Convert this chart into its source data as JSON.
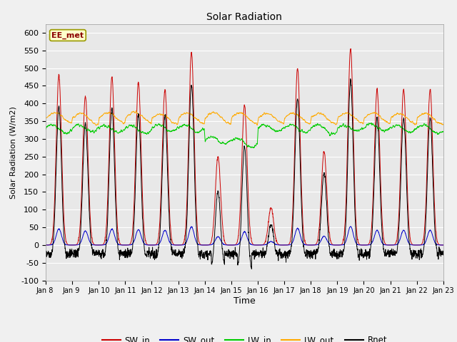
{
  "title": "Solar Radiation",
  "ylabel": "Solar Radiation (W/m2)",
  "xlabel": "Time",
  "station_label": "EE_met",
  "ylim": [
    -100,
    625
  ],
  "yticks": [
    -100,
    -50,
    0,
    50,
    100,
    150,
    200,
    250,
    300,
    350,
    400,
    450,
    500,
    550,
    600
  ],
  "n_days": 15,
  "points_per_day": 144,
  "SW_in_peaks": [
    480,
    420,
    475,
    460,
    440,
    545,
    250,
    395,
    105,
    500,
    265,
    555,
    440,
    440,
    440
  ],
  "colors": {
    "SW_in": "#cc0000",
    "SW_out": "#0000cc",
    "LW_in": "#00cc00",
    "LW_out": "#ffaa00",
    "Rnet": "#000000"
  },
  "bg_color": "#e8e8e8",
  "grid_color": "#ffffff",
  "linewidth": 0.7,
  "fig_facecolor": "#f0f0f0",
  "tick_labels": [
    "Jan 8",
    "Jan 9",
    "Jan 10",
    "Jan 11",
    "Jan 12",
    "Jan 13",
    "Jan 14",
    "Jan 15",
    "Jan 16",
    "Jan 17",
    "Jan 18",
    "Jan 19",
    "Jan 20",
    "Jan 21",
    "Jan 22",
    "Jan 23"
  ],
  "legend_labels": [
    "SW_in",
    "SW_out",
    "LW_in",
    "LW_out",
    "Rnet"
  ]
}
